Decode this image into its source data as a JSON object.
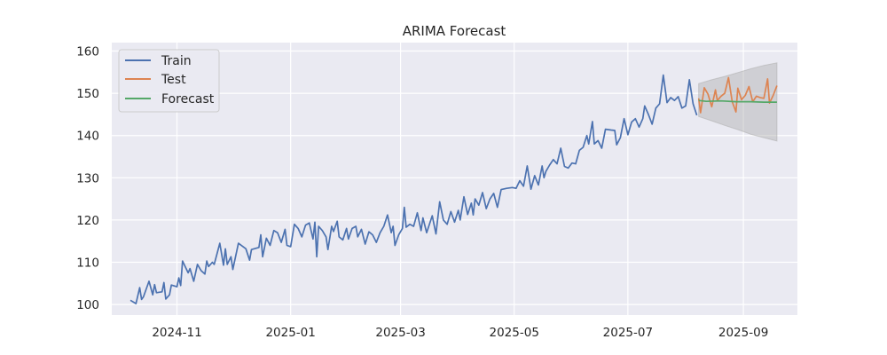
{
  "chart_data": {
    "type": "line",
    "title": "ARIMA Forecast",
    "xlabel": "",
    "ylabel": "",
    "x_ticks": [
      "2024-11",
      "2025-01",
      "2025-03",
      "2025-05",
      "2025-07",
      "2025-09"
    ],
    "y_ticks": [
      100,
      110,
      120,
      130,
      140,
      150,
      160
    ],
    "ylim": [
      97.5,
      162
    ],
    "xlim": [
      "2024-09-27",
      "2025-09-30"
    ],
    "grid": true,
    "legend_position": "top-left",
    "colors": {
      "train": "#4c72b0",
      "test": "#dd8452",
      "forecast": "#55a868",
      "band": "#b0b0b0",
      "background": "#eaeaf2",
      "grid": "#ffffff"
    },
    "series": [
      {
        "name": "Train",
        "points": [
          [
            "2024-10-07",
            101.0
          ],
          [
            "2024-10-10",
            100.2
          ],
          [
            "2024-10-12",
            104.0
          ],
          [
            "2024-10-13",
            101.2
          ],
          [
            "2024-10-14",
            101.8
          ],
          [
            "2024-10-17",
            105.5
          ],
          [
            "2024-10-19",
            102.3
          ],
          [
            "2024-10-20",
            104.7
          ],
          [
            "2024-10-21",
            102.8
          ],
          [
            "2024-10-24",
            103.0
          ],
          [
            "2024-10-25",
            105.2
          ],
          [
            "2024-10-26",
            101.3
          ],
          [
            "2024-10-28",
            102.3
          ],
          [
            "2024-10-29",
            104.6
          ],
          [
            "2024-11-01",
            104.2
          ],
          [
            "2024-11-02",
            106.3
          ],
          [
            "2024-11-03",
            104.5
          ],
          [
            "2024-11-04",
            110.3
          ],
          [
            "2024-11-07",
            107.5
          ],
          [
            "2024-11-08",
            108.5
          ],
          [
            "2024-11-10",
            105.5
          ],
          [
            "2024-11-12",
            109.5
          ],
          [
            "2024-11-14",
            108.0
          ],
          [
            "2024-11-16",
            107.2
          ],
          [
            "2024-11-17",
            110.3
          ],
          [
            "2024-11-18",
            109.0
          ],
          [
            "2024-11-20",
            110.0
          ],
          [
            "2024-11-21",
            109.5
          ],
          [
            "2024-11-24",
            114.5
          ],
          [
            "2024-11-26",
            109.3
          ],
          [
            "2024-11-27",
            113.2
          ],
          [
            "2024-11-28",
            109.5
          ],
          [
            "2024-11-30",
            111.3
          ],
          [
            "2024-12-01",
            108.3
          ],
          [
            "2024-12-04",
            114.5
          ],
          [
            "2024-12-08",
            113.2
          ],
          [
            "2024-12-10",
            110.5
          ],
          [
            "2024-12-11",
            113.0
          ],
          [
            "2024-12-15",
            113.5
          ],
          [
            "2024-12-16",
            116.5
          ],
          [
            "2024-12-17",
            111.3
          ],
          [
            "2024-12-19",
            115.7
          ],
          [
            "2024-12-21",
            114.0
          ],
          [
            "2024-12-23",
            117.5
          ],
          [
            "2024-12-25",
            117.0
          ],
          [
            "2024-12-27",
            114.7
          ],
          [
            "2024-12-29",
            117.8
          ],
          [
            "2024-12-30",
            114.0
          ],
          [
            "2025-01-01",
            113.7
          ],
          [
            "2025-01-03",
            119.0
          ],
          [
            "2025-01-05",
            118.0
          ],
          [
            "2025-01-07",
            116.0
          ],
          [
            "2025-01-09",
            118.8
          ],
          [
            "2025-01-11",
            119.3
          ],
          [
            "2025-01-13",
            115.5
          ],
          [
            "2025-01-14",
            119.5
          ],
          [
            "2025-01-15",
            111.3
          ],
          [
            "2025-01-16",
            118.5
          ],
          [
            "2025-01-18",
            117.5
          ],
          [
            "2025-01-20",
            116.0
          ],
          [
            "2025-01-21",
            113.0
          ],
          [
            "2025-01-23",
            118.5
          ],
          [
            "2025-01-24",
            117.3
          ],
          [
            "2025-01-26",
            119.7
          ],
          [
            "2025-01-27",
            116.0
          ],
          [
            "2025-01-29",
            115.3
          ],
          [
            "2025-01-31",
            118.0
          ],
          [
            "2025-02-01",
            115.5
          ],
          [
            "2025-02-03",
            118.0
          ],
          [
            "2025-02-05",
            118.5
          ],
          [
            "2025-02-06",
            116.0
          ],
          [
            "2025-02-08",
            117.8
          ],
          [
            "2025-02-10",
            114.3
          ],
          [
            "2025-02-12",
            117.2
          ],
          [
            "2025-02-14",
            116.5
          ],
          [
            "2025-02-16",
            114.7
          ],
          [
            "2025-02-18",
            117.0
          ],
          [
            "2025-02-20",
            118.5
          ],
          [
            "2025-02-22",
            121.2
          ],
          [
            "2025-02-24",
            117.0
          ],
          [
            "2025-02-25",
            118.5
          ],
          [
            "2025-02-26",
            114.0
          ],
          [
            "2025-02-28",
            116.5
          ],
          [
            "2025-03-02",
            118.0
          ],
          [
            "2025-03-03",
            123.0
          ],
          [
            "2025-03-04",
            118.3
          ],
          [
            "2025-03-06",
            119.0
          ],
          [
            "2025-03-08",
            118.5
          ],
          [
            "2025-03-10",
            121.7
          ],
          [
            "2025-03-12",
            117.5
          ],
          [
            "2025-03-13",
            120.5
          ],
          [
            "2025-03-15",
            117.0
          ],
          [
            "2025-03-18",
            121.0
          ],
          [
            "2025-03-20",
            116.7
          ],
          [
            "2025-03-22",
            124.3
          ],
          [
            "2025-03-24",
            120.0
          ],
          [
            "2025-03-26",
            119.0
          ],
          [
            "2025-03-28",
            122.0
          ],
          [
            "2025-03-30",
            119.5
          ],
          [
            "2025-04-01",
            122.3
          ],
          [
            "2025-04-02",
            120.0
          ],
          [
            "2025-04-04",
            125.5
          ],
          [
            "2025-04-06",
            121.3
          ],
          [
            "2025-04-08",
            124.0
          ],
          [
            "2025-04-09",
            121.2
          ],
          [
            "2025-04-10",
            125.0
          ],
          [
            "2025-04-12",
            123.5
          ],
          [
            "2025-04-14",
            126.5
          ],
          [
            "2025-04-16",
            122.7
          ],
          [
            "2025-04-18",
            125.0
          ],
          [
            "2025-04-20",
            126.3
          ],
          [
            "2025-04-22",
            123.0
          ],
          [
            "2025-04-24",
            127.2
          ],
          [
            "2025-04-27",
            127.5
          ],
          [
            "2025-04-30",
            127.7
          ],
          [
            "2025-05-02",
            127.5
          ],
          [
            "2025-05-04",
            129.3
          ],
          [
            "2025-05-06",
            128.0
          ],
          [
            "2025-05-08",
            132.8
          ],
          [
            "2025-05-10",
            127.3
          ],
          [
            "2025-05-12",
            130.5
          ],
          [
            "2025-05-14",
            128.3
          ],
          [
            "2025-05-16",
            132.8
          ],
          [
            "2025-05-17",
            130.0
          ],
          [
            "2025-05-18",
            131.5
          ],
          [
            "2025-05-20",
            133.0
          ],
          [
            "2025-05-22",
            134.3
          ],
          [
            "2025-05-24",
            133.3
          ],
          [
            "2025-05-26",
            137.0
          ],
          [
            "2025-05-28",
            132.7
          ],
          [
            "2025-05-30",
            132.3
          ],
          [
            "2025-06-01",
            133.5
          ],
          [
            "2025-06-03",
            133.3
          ],
          [
            "2025-06-05",
            136.5
          ],
          [
            "2025-06-07",
            137.2
          ],
          [
            "2025-06-09",
            140.0
          ],
          [
            "2025-06-10",
            138.0
          ],
          [
            "2025-06-12",
            143.3
          ],
          [
            "2025-06-13",
            138.0
          ],
          [
            "2025-06-15",
            138.8
          ],
          [
            "2025-06-17",
            137.0
          ],
          [
            "2025-06-19",
            141.5
          ],
          [
            "2025-06-22",
            141.3
          ],
          [
            "2025-06-24",
            141.2
          ],
          [
            "2025-06-25",
            137.8
          ],
          [
            "2025-06-27",
            139.5
          ],
          [
            "2025-06-29",
            144.0
          ],
          [
            "2025-07-01",
            140.2
          ],
          [
            "2025-07-03",
            143.2
          ],
          [
            "2025-07-05",
            144.0
          ],
          [
            "2025-07-07",
            142.0
          ],
          [
            "2025-07-09",
            144.0
          ],
          [
            "2025-07-10",
            147.0
          ],
          [
            "2025-07-12",
            145.0
          ],
          [
            "2025-07-14",
            142.7
          ],
          [
            "2025-07-16",
            146.5
          ],
          [
            "2025-07-18",
            147.5
          ],
          [
            "2025-07-20",
            154.3
          ],
          [
            "2025-07-22",
            147.8
          ],
          [
            "2025-07-24",
            149.0
          ],
          [
            "2025-07-26",
            148.3
          ],
          [
            "2025-07-28",
            149.2
          ],
          [
            "2025-07-30",
            146.5
          ],
          [
            "2025-08-01",
            147.0
          ],
          [
            "2025-08-03",
            153.2
          ],
          [
            "2025-08-05",
            147.5
          ],
          [
            "2025-08-07",
            144.8
          ]
        ]
      },
      {
        "name": "Test",
        "points": [
          [
            "2025-08-08",
            148.8
          ],
          [
            "2025-08-09",
            145.4
          ],
          [
            "2025-08-11",
            151.3
          ],
          [
            "2025-08-13",
            149.8
          ],
          [
            "2025-08-15",
            146.8
          ],
          [
            "2025-08-17",
            150.8
          ],
          [
            "2025-08-18",
            148.3
          ],
          [
            "2025-08-20",
            149.3
          ],
          [
            "2025-08-22",
            150.0
          ],
          [
            "2025-08-24",
            153.7
          ],
          [
            "2025-08-26",
            148.0
          ],
          [
            "2025-08-28",
            145.6
          ],
          [
            "2025-08-29",
            151.2
          ],
          [
            "2025-08-31",
            148.5
          ],
          [
            "2025-09-02",
            149.5
          ],
          [
            "2025-09-04",
            151.6
          ],
          [
            "2025-09-06",
            148.0
          ],
          [
            "2025-09-08",
            149.3
          ],
          [
            "2025-09-10",
            149.0
          ],
          [
            "2025-09-12",
            148.8
          ],
          [
            "2025-09-14",
            153.4
          ],
          [
            "2025-09-15",
            147.7
          ],
          [
            "2025-09-17",
            149.5
          ],
          [
            "2025-09-19",
            151.8
          ]
        ]
      },
      {
        "name": "Forecast",
        "points": [
          [
            "2025-08-08",
            148.3
          ],
          [
            "2025-08-12",
            148.1
          ],
          [
            "2025-08-20",
            148.2
          ],
          [
            "2025-08-28",
            148.0
          ],
          [
            "2025-09-05",
            148.0
          ],
          [
            "2025-09-12",
            147.9
          ],
          [
            "2025-09-19",
            147.9
          ]
        ]
      }
    ],
    "confidence_band": {
      "points": [
        [
          "2025-08-08",
          152.3,
          144.5
        ],
        [
          "2025-08-15",
          153.2,
          143.5
        ],
        [
          "2025-08-22",
          154.0,
          142.4
        ],
        [
          "2025-08-29",
          154.9,
          141.4
        ],
        [
          "2025-09-05",
          155.8,
          140.3
        ],
        [
          "2025-09-12",
          156.6,
          139.5
        ],
        [
          "2025-09-19",
          157.2,
          138.7
        ]
      ]
    }
  }
}
